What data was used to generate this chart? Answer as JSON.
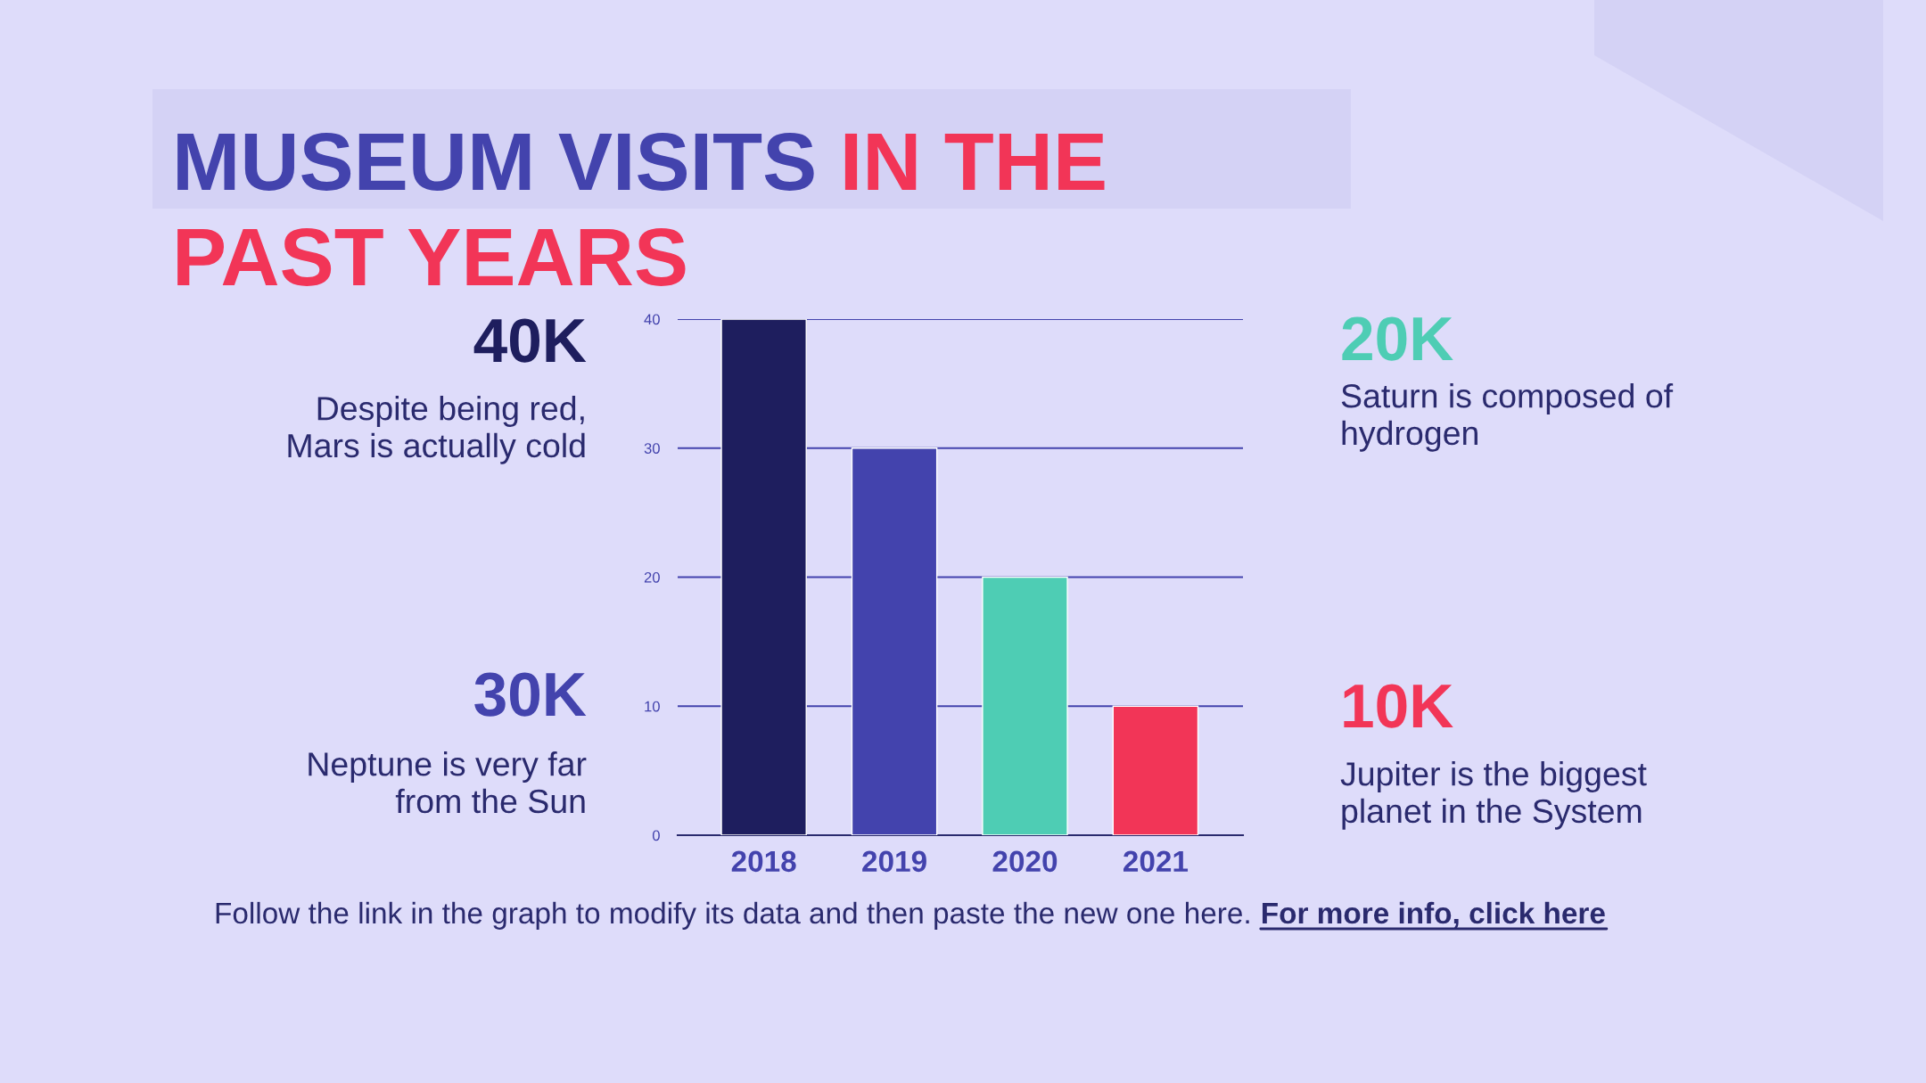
{
  "chart_data": {
    "type": "bar",
    "title": "MUSEUM VISITS IN THE PAST YEARS",
    "categories": [
      "2018",
      "2019",
      "2020",
      "2021"
    ],
    "values": [
      40,
      30,
      20,
      10
    ],
    "colors": [
      "#1e1e5e",
      "#4343ad",
      "#4ecdb4",
      "#f23557"
    ],
    "ylim": [
      0,
      40
    ],
    "yticks": [
      0,
      10,
      20,
      30,
      40
    ],
    "grid": "y",
    "legend": false,
    "annotations": [
      "40K",
      "Despite being red,\nMars is actually cold",
      "30K",
      "Neptune is very far\nfrom the Sun",
      "20K",
      "Saturn is composed of\nhydrogen",
      "10K",
      "Jupiter is the biggest\nplanet in the System",
      "Follow the link in the graph to modify its data and then paste the new one here.",
      "For more info, click here"
    ]
  }
}
